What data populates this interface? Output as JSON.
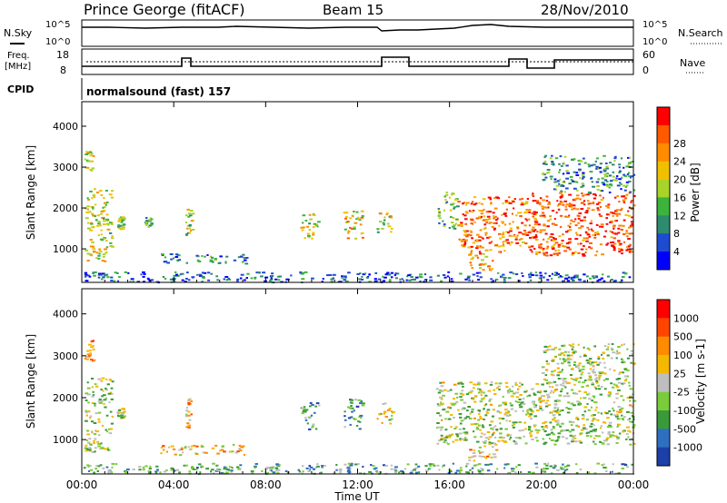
{
  "header": {
    "station": "Prince George (fitACF)",
    "beam": "Beam 15",
    "date": "28/Nov/2010"
  },
  "noise_panel": {
    "left_label": "N.Sky",
    "right_label": "N.Search",
    "left_ticks": [
      "10^5",
      "10^0"
    ],
    "right_ticks": [
      "10^5",
      "10^0"
    ]
  },
  "freq_panel": {
    "left_label_1": "Freq.",
    "left_label_2": "[MHz]",
    "left_ticks": [
      "18",
      "8"
    ],
    "right_label": "Nave",
    "right_ticks": [
      "60",
      "0"
    ]
  },
  "cpid_panel": {
    "label": "CPID",
    "text": "normalsound (fast) 157"
  },
  "chart_data": [
    {
      "type": "heatmap",
      "panel": "power",
      "ylabel": "Slant Range [km]",
      "ylim": [
        180,
        4600
      ],
      "yticks": [
        "1000",
        "2000",
        "3000",
        "4000"
      ],
      "xticks": [
        "00:00",
        "04:00",
        "08:00",
        "12:00",
        "16:00",
        "20:00",
        "00:00"
      ],
      "xlim_hours": [
        0,
        24
      ],
      "colorbar_label": "Power [dB]",
      "colorbar_ticks": [
        "4",
        "8",
        "12",
        "16",
        "20",
        "24",
        "28"
      ],
      "colorbar_colors": [
        "#0000ff",
        "#1f4bd0",
        "#2e8b6e",
        "#3cb43c",
        "#a8d42a",
        "#f0c000",
        "#ff8c00",
        "#ff5a00",
        "#ff0000"
      ],
      "regions": [
        {
          "t": [
            0.1,
            1.3
          ],
          "r": [
            700,
            2500
          ],
          "level": 0.55
        },
        {
          "t": [
            0.1,
            0.5
          ],
          "r": [
            2900,
            3400
          ],
          "level": 0.5
        },
        {
          "t": [
            1.5,
            1.8
          ],
          "r": [
            1500,
            1800
          ],
          "level": 0.45
        },
        {
          "t": [
            2.7,
            3.0
          ],
          "r": [
            1550,
            1800
          ],
          "level": 0.35
        },
        {
          "t": [
            4.5,
            4.8
          ],
          "r": [
            1300,
            2000
          ],
          "level": 0.5
        },
        {
          "t": [
            3.4,
            7.2
          ],
          "r": [
            650,
            900
          ],
          "level": 0.25
        },
        {
          "t": [
            9.5,
            10.3
          ],
          "r": [
            1250,
            1900
          ],
          "level": 0.55
        },
        {
          "t": [
            11.3,
            12.2
          ],
          "r": [
            1250,
            2000
          ],
          "level": 0.6
        },
        {
          "t": [
            12.8,
            13.5
          ],
          "r": [
            1400,
            1900
          ],
          "level": 0.5
        },
        {
          "t": [
            15.4,
            16.3
          ],
          "r": [
            1500,
            2400
          ],
          "level": 0.4
        },
        {
          "t": [
            16.3,
            18.5
          ],
          "r": [
            900,
            2300
          ],
          "level": 0.8
        },
        {
          "t": [
            16.8,
            18.0
          ],
          "r": [
            500,
            900
          ],
          "level": 0.65
        },
        {
          "t": [
            18.5,
            19.3
          ],
          "r": [
            1100,
            2300
          ],
          "level": 0.75
        },
        {
          "t": [
            19.3,
            24.0
          ],
          "r": [
            850,
            2400
          ],
          "level": 0.85
        },
        {
          "t": [
            20.0,
            24.0
          ],
          "r": [
            2400,
            3300
          ],
          "level": 0.3
        },
        {
          "t": [
            0.0,
            24.0
          ],
          "r": [
            200,
            450
          ],
          "level": 0.2
        }
      ]
    },
    {
      "type": "heatmap",
      "panel": "velocity",
      "ylabel": "Slant Range [km]",
      "ylim": [
        180,
        4600
      ],
      "yticks": [
        "1000",
        "2000",
        "3000",
        "4000"
      ],
      "xticks": [
        "00:00",
        "04:00",
        "08:00",
        "12:00",
        "16:00",
        "20:00",
        "00:00"
      ],
      "xlim_hours": [
        0,
        24
      ],
      "xlabel": "Time UT",
      "colorbar_label": "Velocity [m s-1]",
      "colorbar_ticks": [
        "1000",
        "500",
        "100",
        "25",
        "-25",
        "-100",
        "-500",
        "-1000"
      ],
      "colorbar_colors": [
        "#1c3fa8",
        "#2f6fc0",
        "#3a9a3a",
        "#7acc3a",
        "#bebebe",
        "#f5b800",
        "#ff8c00",
        "#ff4500",
        "#ff0000"
      ],
      "regions": [
        {
          "t": [
            0.1,
            1.3
          ],
          "r": [
            700,
            2500
          ],
          "level": 0.45
        },
        {
          "t": [
            0.1,
            0.5
          ],
          "r": [
            2900,
            3400
          ],
          "level": 0.7
        },
        {
          "t": [
            1.5,
            1.8
          ],
          "r": [
            1500,
            1800
          ],
          "level": 0.45
        },
        {
          "t": [
            4.5,
            4.8
          ],
          "r": [
            1300,
            2000
          ],
          "level": 0.65
        },
        {
          "t": [
            3.4,
            7.2
          ],
          "r": [
            650,
            900
          ],
          "level": 0.62
        },
        {
          "t": [
            9.5,
            10.3
          ],
          "r": [
            1250,
            1900
          ],
          "level": 0.3
        },
        {
          "t": [
            11.3,
            12.2
          ],
          "r": [
            1250,
            2000
          ],
          "level": 0.25
        },
        {
          "t": [
            12.8,
            13.5
          ],
          "r": [
            1400,
            1900
          ],
          "level": 0.5
        },
        {
          "t": [
            15.4,
            24.0
          ],
          "r": [
            900,
            2400
          ],
          "level": 0.45
        },
        {
          "t": [
            16.8,
            18.0
          ],
          "r": [
            500,
            900
          ],
          "level": 0.62
        },
        {
          "t": [
            20.0,
            24.0
          ],
          "r": [
            2400,
            3300
          ],
          "level": 0.45
        },
        {
          "t": [
            0.0,
            24.0
          ],
          "r": [
            200,
            450
          ],
          "level": 0.33
        }
      ]
    }
  ]
}
